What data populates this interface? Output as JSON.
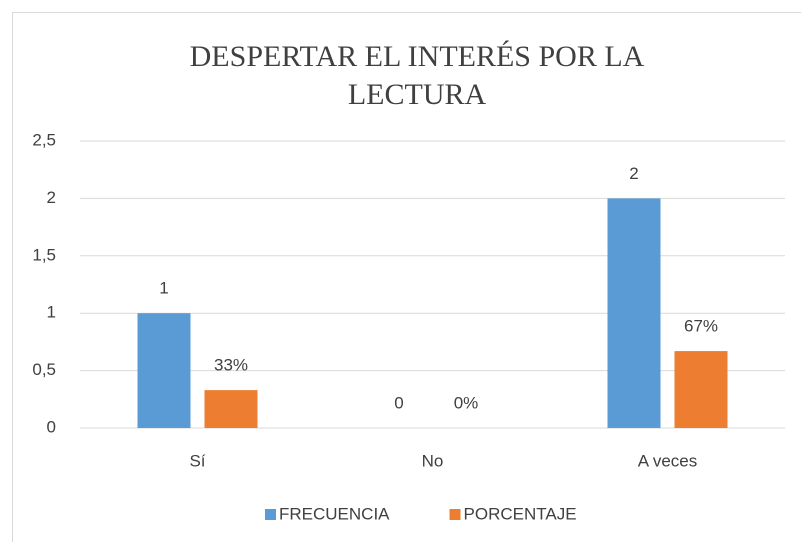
{
  "chart_data": {
    "type": "bar",
    "title": "DESPERTAR EL INTERÉS POR LA LECTURA",
    "categories": [
      "Sí",
      "No",
      "A veces"
    ],
    "series": [
      {
        "name": "FRECUENCIA",
        "color": "#5b9bd5",
        "values": [
          1,
          0,
          2
        ]
      },
      {
        "name": "PORCENTAJE",
        "color": "#ed7d31",
        "values": [
          0.33,
          0,
          0.67
        ],
        "value_labels": [
          "33%",
          "0%",
          "67%"
        ]
      }
    ],
    "ylim": [
      0,
      2.5
    ],
    "yticks": [
      0,
      {
        "value": 0.5,
        "label": "0,5"
      },
      1,
      {
        "value": 1.5,
        "label": "1,5"
      },
      2,
      {
        "value": 2.5,
        "label": "2,5"
      }
    ],
    "grid": true,
    "legend": "bottom"
  }
}
